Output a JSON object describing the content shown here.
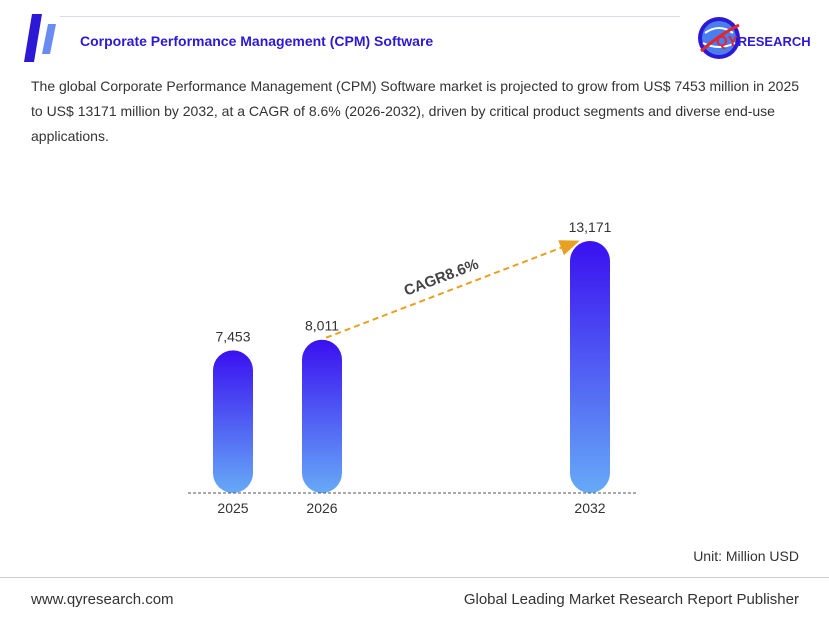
{
  "header": {
    "title": "Corporate Performance Management (CPM) Software"
  },
  "logo": {
    "qy": "QY",
    "research": "RESEARCH"
  },
  "description": "The global Corporate Performance Management (CPM) Software market is projected to grow from US$ 7453 million in 2025 to US$ 13171 million by 2032, at a CAGR of 8.6% (2026-2032), driven by critical product segments and diverse end-use applications.",
  "chart_data": {
    "type": "bar",
    "categories": [
      "2025",
      "2026",
      "2032"
    ],
    "values": [
      7453,
      8011,
      13171
    ],
    "value_labels": [
      "7,453",
      "8,011",
      "13,171"
    ],
    "annotation": "CAGR8.6%",
    "annotation_from": "2026",
    "annotation_to": "2032",
    "unit": "Unit: Million USD",
    "colors": {
      "bar_top": "#3a10f0",
      "bar_bottom": "#66aaf7",
      "arrow": "#e8a020"
    }
  },
  "footer": {
    "website": "www.qyresearch.com",
    "tagline": "Global Leading Market Research Report Publisher"
  }
}
